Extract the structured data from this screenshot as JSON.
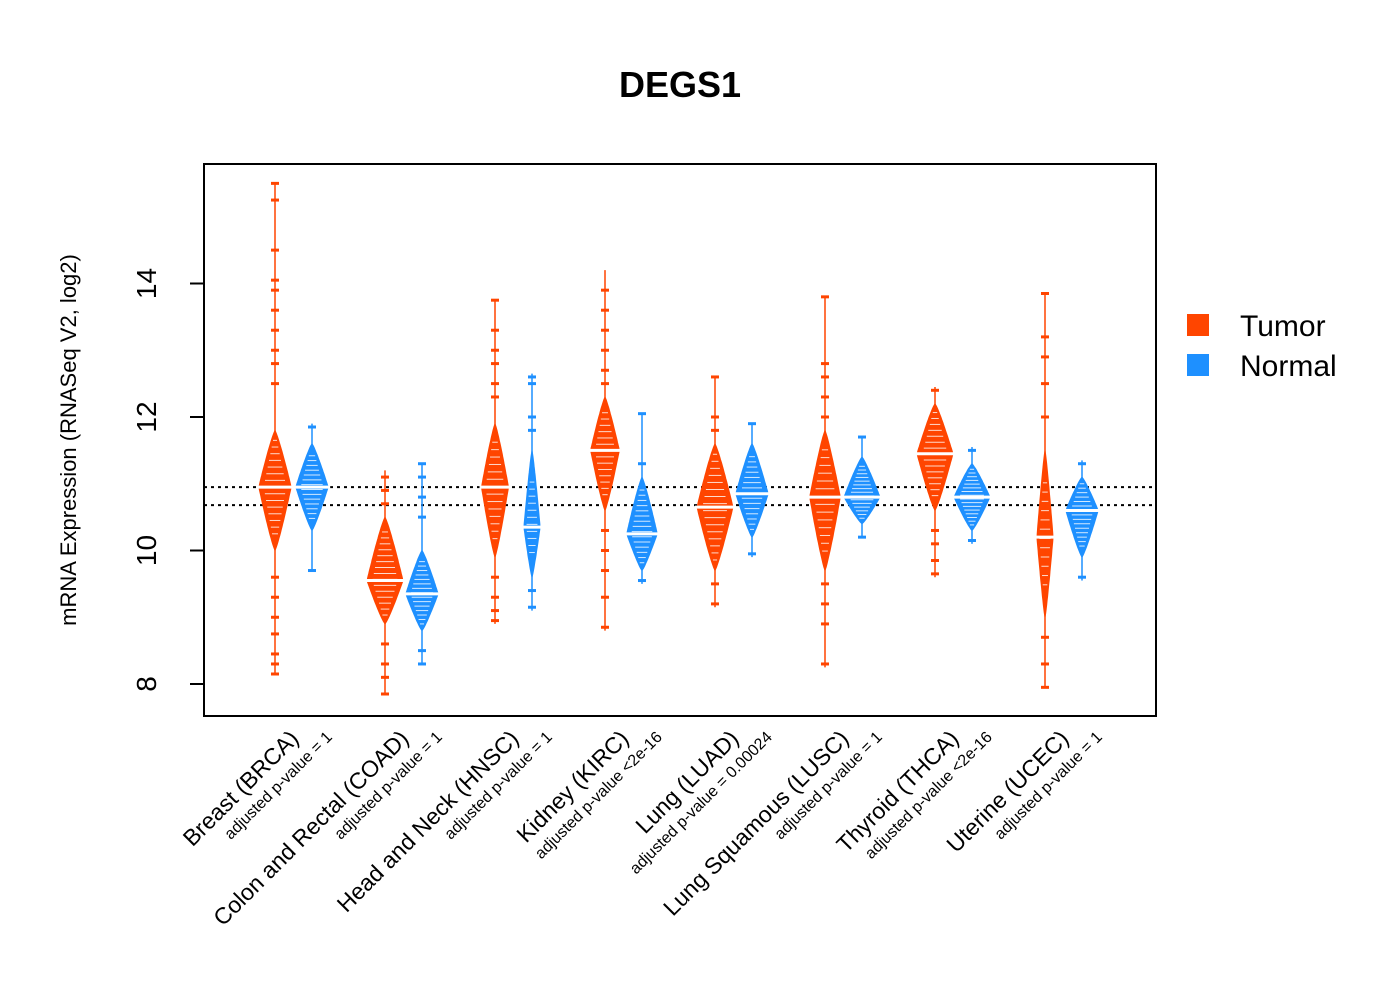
{
  "chart_data": {
    "type": "beanplot",
    "title": "DEGS1",
    "xlabel": "",
    "ylabel": "mRNA Expression (RNASeq V2, log2)",
    "ylim": [
      7.55,
      15.8
    ],
    "yticks": [
      8,
      10,
      12,
      14
    ],
    "reference_lines": [
      10.68,
      10.95
    ],
    "legend": {
      "position": "right",
      "entries": [
        "Tumor",
        "Normal"
      ]
    },
    "colors": {
      "Tumor": "#FF4500",
      "Normal": "#1E90FF"
    },
    "categories": [
      {
        "name": "Breast (BRCA)",
        "pvalue": "adjusted p-value = 1",
        "tumor": {
          "min": 8.15,
          "max": 15.5,
          "median": 10.95,
          "core_low": 10.0,
          "core_high": 11.8,
          "width": 0.9,
          "outliers": [
            15.5,
            15.25,
            14.5,
            14.05,
            13.9,
            13.6,
            13.3,
            13.0,
            12.8,
            12.5,
            9.6,
            9.3,
            9.0,
            8.75,
            8.45,
            8.3,
            8.15
          ]
        },
        "normal": {
          "min": 9.7,
          "max": 11.9,
          "median": 10.95,
          "core_low": 10.3,
          "core_high": 11.6,
          "width": 0.9,
          "outliers": [
            11.85,
            9.7
          ]
        }
      },
      {
        "name": "Colon and Rectal (COAD)",
        "pvalue": "adjusted p-value = 1",
        "tumor": {
          "min": 7.85,
          "max": 11.2,
          "median": 9.55,
          "core_low": 8.9,
          "core_high": 10.5,
          "width": 1.0,
          "outliers": [
            11.1,
            10.9,
            10.7,
            8.6,
            8.3,
            8.1,
            7.85
          ]
        },
        "normal": {
          "min": 8.3,
          "max": 11.3,
          "median": 9.35,
          "core_low": 8.8,
          "core_high": 10.0,
          "width": 0.9,
          "outliers": [
            11.3,
            11.1,
            10.8,
            10.5,
            8.5,
            8.3
          ]
        }
      },
      {
        "name": "Head and Neck (HNSC)",
        "pvalue": "adjusted p-value = 1",
        "tumor": {
          "min": 8.9,
          "max": 13.75,
          "median": 10.95,
          "core_low": 9.9,
          "core_high": 11.9,
          "width": 0.75,
          "outliers": [
            13.75,
            13.3,
            13.0,
            12.8,
            12.5,
            12.3,
            9.6,
            9.3,
            9.1,
            8.95
          ]
        },
        "normal": {
          "min": 9.1,
          "max": 12.65,
          "median": 10.35,
          "core_low": 9.6,
          "core_high": 11.5,
          "width": 0.45,
          "outliers": [
            12.6,
            12.5,
            12.0,
            11.8,
            9.4,
            9.15
          ]
        }
      },
      {
        "name": "Kidney (KIRC)",
        "pvalue": "adjusted p-value <2e-16",
        "tumor": {
          "min": 8.8,
          "max": 14.2,
          "median": 11.5,
          "core_low": 10.6,
          "core_high": 12.3,
          "width": 0.8,
          "outliers": [
            13.9,
            13.6,
            13.3,
            13.0,
            12.7,
            12.5,
            10.3,
            10.0,
            9.7,
            9.3,
            8.85
          ]
        },
        "normal": {
          "min": 9.5,
          "max": 12.05,
          "median": 10.25,
          "core_low": 9.7,
          "core_high": 11.1,
          "width": 0.85,
          "outliers": [
            12.05,
            11.3,
            9.55
          ]
        }
      },
      {
        "name": "Lung (LUAD)",
        "pvalue": "adjusted p-value = 0.00024",
        "tumor": {
          "min": 9.15,
          "max": 12.6,
          "median": 10.65,
          "core_low": 9.7,
          "core_high": 11.6,
          "width": 1.0,
          "outliers": [
            12.6,
            12.0,
            11.8,
            9.5,
            9.2
          ]
        },
        "normal": {
          "min": 9.9,
          "max": 11.9,
          "median": 10.85,
          "core_low": 10.2,
          "core_high": 11.6,
          "width": 0.9,
          "outliers": [
            11.9,
            9.95
          ]
        }
      },
      {
        "name": "Lung Squamous (LUSC)",
        "pvalue": "adjusted p-value = 1",
        "tumor": {
          "min": 8.25,
          "max": 13.8,
          "median": 10.8,
          "core_low": 9.7,
          "core_high": 11.8,
          "width": 0.85,
          "outliers": [
            13.8,
            12.8,
            12.6,
            12.3,
            12.0,
            9.5,
            9.2,
            8.9,
            8.3
          ]
        },
        "normal": {
          "min": 10.2,
          "max": 11.7,
          "median": 10.8,
          "core_low": 10.4,
          "core_high": 11.4,
          "width": 1.0,
          "outliers": [
            11.7,
            10.2
          ]
        }
      },
      {
        "name": "Thyroid (THCA)",
        "pvalue": "adjusted p-value <2e-16",
        "tumor": {
          "min": 9.6,
          "max": 12.45,
          "median": 11.45,
          "core_low": 10.6,
          "core_high": 12.2,
          "width": 1.0,
          "outliers": [
            12.4,
            10.3,
            10.1,
            9.85,
            9.65
          ]
        },
        "normal": {
          "min": 10.1,
          "max": 11.55,
          "median": 10.8,
          "core_low": 10.3,
          "core_high": 11.3,
          "width": 1.0,
          "outliers": [
            11.5,
            10.15
          ]
        }
      },
      {
        "name": "Uterine (UCEC)",
        "pvalue": "adjusted p-value = 1",
        "tumor": {
          "min": 7.95,
          "max": 13.85,
          "median": 10.2,
          "core_low": 9.0,
          "core_high": 11.5,
          "width": 0.45,
          "outliers": [
            13.85,
            13.2,
            12.9,
            12.5,
            12.0,
            8.7,
            8.3,
            7.95
          ]
        },
        "normal": {
          "min": 9.55,
          "max": 11.35,
          "median": 10.6,
          "core_low": 9.9,
          "core_high": 11.1,
          "width": 0.9,
          "outliers": [
            11.3,
            9.6
          ]
        }
      }
    ]
  }
}
